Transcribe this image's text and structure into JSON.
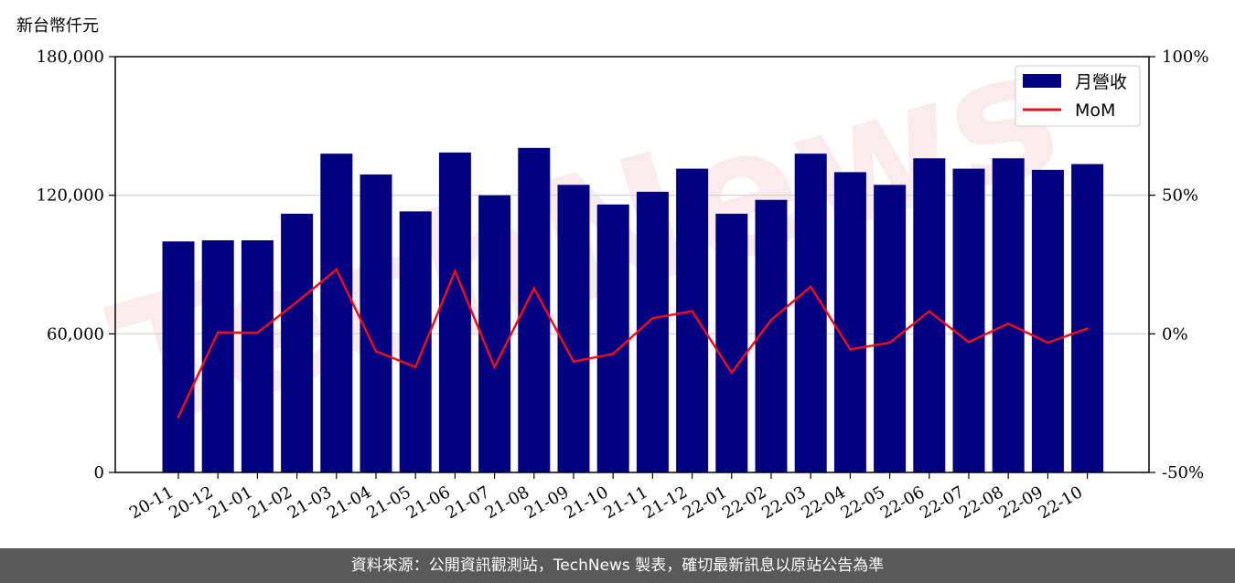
{
  "chart_data": {
    "type": "bar+line",
    "y_unit_label": "新台幣仟元",
    "categories": [
      "20-11",
      "20-12",
      "21-01",
      "21-02",
      "21-03",
      "21-04",
      "21-05",
      "21-06",
      "21-07",
      "21-08",
      "21-09",
      "21-10",
      "21-11",
      "21-12",
      "22-01",
      "22-02",
      "22-03",
      "22-04",
      "22-05",
      "22-06",
      "22-07",
      "22-08",
      "22-09",
      "22-10"
    ],
    "series": [
      {
        "name": "月營收",
        "type": "bar",
        "axis": "left",
        "color": "#000080",
        "values": [
          100000,
          100500,
          100500,
          112000,
          138000,
          129000,
          113000,
          138500,
          120000,
          140500,
          124500,
          116000,
          121500,
          131500,
          112000,
          118000,
          138000,
          130000,
          124500,
          136000,
          131500,
          136000,
          131000,
          133500
        ]
      },
      {
        "name": "MoM",
        "type": "line",
        "axis": "right",
        "color": "#e8101a",
        "values": [
          -30.0,
          0.5,
          0.4,
          11.5,
          23.2,
          -6.3,
          -12.0,
          22.6,
          -12.0,
          16.4,
          -10.0,
          -7.2,
          5.6,
          8.2,
          -14.0,
          5.0,
          17.0,
          -5.6,
          -3.2,
          8.1,
          -3.0,
          3.7,
          -3.2,
          1.9
        ]
      }
    ],
    "y_left": {
      "min": 0,
      "max": 180000,
      "ticks": [
        "0",
        "60,000",
        "120,000",
        "180,000"
      ],
      "tick_values": [
        0,
        60000,
        120000,
        180000
      ]
    },
    "y_right": {
      "min": -50,
      "max": 100,
      "ticks": [
        "-50%",
        "0%",
        "50%",
        "100%"
      ],
      "tick_values": [
        -50,
        0,
        50,
        100
      ]
    },
    "grid": "horizontal",
    "legend": "top-right",
    "watermark": "TechNews"
  },
  "footer": {
    "text": "資料來源：公開資訊觀測站，TechNews 製表，確切最新訊息以原站公告為準"
  }
}
